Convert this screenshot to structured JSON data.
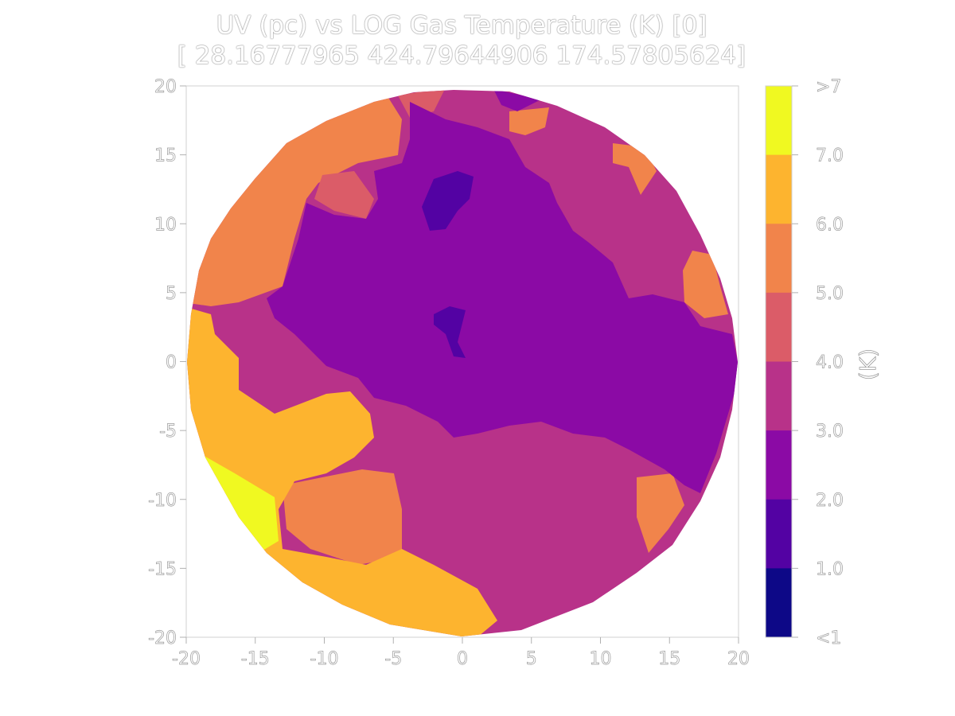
{
  "chart_data": {
    "type": "heatmap",
    "title": "UV (pc) vs LOG Gas Temperature (K) [0]",
    "subtitle": "[ 28.16777965 424.79644906 174.57805624]",
    "xlim": [
      -20,
      20
    ],
    "ylim": [
      -20,
      20
    ],
    "x_ticks": [
      "-20",
      "-15",
      "-10",
      "-5",
      "0",
      "5",
      "10",
      "15",
      "20"
    ],
    "y_ticks": [
      "20",
      "15",
      "10",
      "5",
      "0",
      "-5",
      "-10",
      "-15",
      "-20"
    ],
    "colorbar": {
      "label": "(K)",
      "tick_labels": [
        ">7",
        "7.0",
        "6.0",
        "5.0",
        "4.0",
        "3.0",
        "2.0",
        "1.0",
        "<1"
      ],
      "colors_top_to_bottom": [
        "#f0f921",
        "#fdb42f",
        "#f1844b",
        "#db5c68",
        "#b83289",
        "#8b0aa5",
        "#5302a3",
        "#0d0887"
      ]
    },
    "grid": false
  }
}
